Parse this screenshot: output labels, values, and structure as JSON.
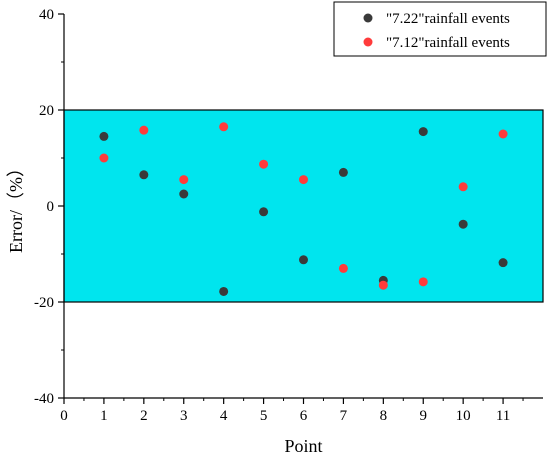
{
  "chart_data": {
    "type": "scatter",
    "title": "",
    "xlabel": "Point",
    "ylabel": "Error/（%）",
    "xlim": [
      0,
      12
    ],
    "ylim": [
      -40,
      40
    ],
    "x_ticks": [
      0,
      1,
      2,
      3,
      4,
      5,
      6,
      7,
      8,
      9,
      10,
      11
    ],
    "y_ticks": [
      -40,
      -20,
      0,
      20,
      40
    ],
    "band": {
      "from": -20,
      "to": 20,
      "color": "#00e5ee"
    },
    "legend_position": "top-right",
    "grid": false,
    "series": [
      {
        "name": "\"7.22\"rainfall events",
        "color": "#3a3a3a",
        "x": [
          1,
          2,
          3,
          4,
          5,
          6,
          7,
          8,
          9,
          10,
          11
        ],
        "y": [
          14.5,
          6.5,
          2.5,
          -17.8,
          -1.2,
          -11.2,
          7,
          -15.5,
          15.5,
          -3.8,
          -11.8
        ]
      },
      {
        "name": "\"7.12\"rainfall events",
        "color": "#ff3b3b",
        "x": [
          1,
          2,
          3,
          4,
          5,
          6,
          7,
          8,
          9,
          10,
          11
        ],
        "y": [
          10,
          15.8,
          5.5,
          16.5,
          8.7,
          5.5,
          -13,
          -16.5,
          -15.8,
          4,
          15
        ]
      }
    ]
  }
}
